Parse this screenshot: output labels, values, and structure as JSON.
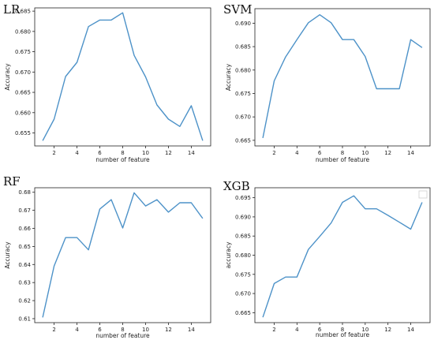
{
  "series_color": "#4d92c8",
  "chart_data": [
    {
      "type": "line",
      "title": "LR",
      "xlabel": "number of feature",
      "ylabel": "Accuracy",
      "xlim": [
        0.3,
        15.7
      ],
      "ylim": [
        0.6518,
        0.6858
      ],
      "x_ticks": [
        2,
        4,
        6,
        8,
        10,
        12,
        14
      ],
      "x_tick_labels": [
        "2",
        "4",
        "6",
        "8",
        "10",
        "12",
        "14"
      ],
      "y_ticks": [
        0.655,
        0.66,
        0.665,
        0.67,
        0.675,
        0.68,
        0.685
      ],
      "y_tick_labels": [
        "0.655",
        "0.660",
        "0.665",
        "0.670",
        "0.675",
        "0.680",
        "0.685"
      ],
      "x": [
        1,
        2,
        3,
        4,
        5,
        6,
        7,
        8,
        9,
        10,
        11,
        12,
        13,
        14,
        15
      ],
      "values": [
        0.6531,
        0.6584,
        0.6689,
        0.6724,
        0.6812,
        0.6828,
        0.6828,
        0.6846,
        0.6741,
        0.6688,
        0.6619,
        0.6584,
        0.6566,
        0.6617,
        0.6531
      ]
    },
    {
      "type": "line",
      "title": "SVM",
      "xlabel": "number of feature",
      "ylabel": "Accuracy",
      "xlim": [
        0.3,
        15.7
      ],
      "ylim": [
        0.6638,
        0.6931
      ],
      "x_ticks": [
        2,
        4,
        6,
        8,
        10,
        12,
        14
      ],
      "x_tick_labels": [
        "2",
        "4",
        "6",
        "8",
        "10",
        "12",
        "14"
      ],
      "y_ticks": [
        0.665,
        0.67,
        0.675,
        0.68,
        0.685,
        0.69
      ],
      "y_tick_labels": [
        "0.665",
        "0.670",
        "0.675",
        "0.680",
        "0.685",
        "0.690"
      ],
      "x": [
        1,
        2,
        3,
        4,
        5,
        6,
        7,
        8,
        9,
        10,
        11,
        12,
        13,
        14,
        15
      ],
      "values": [
        0.6655,
        0.6777,
        0.6828,
        0.6865,
        0.6901,
        0.6918,
        0.6901,
        0.6865,
        0.6865,
        0.6829,
        0.676,
        0.676,
        0.676,
        0.6865,
        0.6848
      ]
    },
    {
      "type": "line",
      "title": "RF",
      "xlabel": "number of feature",
      "ylabel": "Accuracy",
      "xlim": [
        0.3,
        15.7
      ],
      "ylim": [
        0.6078,
        0.6825
      ],
      "x_ticks": [
        2,
        4,
        6,
        8,
        10,
        12,
        14
      ],
      "x_tick_labels": [
        "2",
        "4",
        "6",
        "8",
        "10",
        "12",
        "14"
      ],
      "y_ticks": [
        0.61,
        0.62,
        0.63,
        0.64,
        0.65,
        0.66,
        0.67,
        0.68
      ],
      "y_tick_labels": [
        "0.61",
        "0.62",
        "0.63",
        "0.64",
        "0.65",
        "0.66",
        "0.67",
        "0.68"
      ],
      "x": [
        1,
        2,
        3,
        4,
        5,
        6,
        7,
        8,
        9,
        10,
        11,
        12,
        13,
        14,
        15
      ],
      "values": [
        0.6107,
        0.6392,
        0.6549,
        0.6549,
        0.6481,
        0.6707,
        0.6759,
        0.6602,
        0.6797,
        0.6724,
        0.6759,
        0.669,
        0.6742,
        0.6742,
        0.6655
      ]
    },
    {
      "type": "line",
      "title": "XGB",
      "xlabel": "number of feature",
      "ylabel": "accuracy",
      "xlim": [
        0.3,
        15.7
      ],
      "ylim": [
        0.6624,
        0.6976
      ],
      "x_ticks": [
        2,
        4,
        6,
        8,
        10,
        12,
        14
      ],
      "x_tick_labels": [
        "2",
        "4",
        "6",
        "8",
        "10",
        "12",
        "14"
      ],
      "y_ticks": [
        0.665,
        0.67,
        0.675,
        0.68,
        0.685,
        0.69,
        0.695
      ],
      "y_tick_labels": [
        "0.665",
        "0.670",
        "0.675",
        "0.680",
        "0.685",
        "0.690",
        "0.695"
      ],
      "legend": "top-right",
      "x": [
        1,
        2,
        3,
        4,
        5,
        6,
        7,
        8,
        9,
        10,
        11,
        12,
        13,
        14,
        15
      ],
      "values": [
        0.6638,
        0.6726,
        0.6743,
        0.6743,
        0.6815,
        0.6849,
        0.6884,
        0.6938,
        0.6955,
        0.6921,
        0.6921,
        0.6904,
        0.6886,
        0.6868,
        0.6938
      ]
    }
  ]
}
